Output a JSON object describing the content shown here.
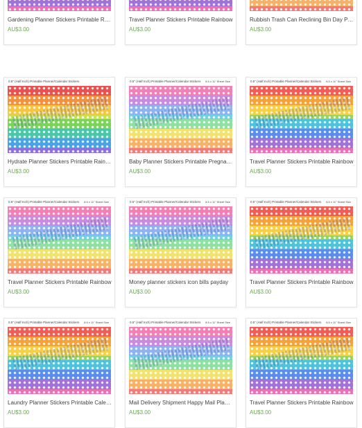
{
  "products": [
    {
      "title": "Gardening Planner Stickers Printable Rainbow",
      "price": "AU$3.00",
      "header": "",
      "size": ""
    },
    {
      "title": "Travel Planner Stickers Printable Rainbow",
      "price": "AU$3.00",
      "header": "",
      "size": ""
    },
    {
      "title": "Rubbish Trash Can Reclining Bin Day Planner",
      "price": "AU$3.00",
      "header": "",
      "size": ""
    },
    {
      "title": "Hydrate Planner Stickers Printable Rainbow",
      "price": "AU$3.00",
      "header": "0.5\" (Half Inch) Printable Planner/Calendar Stickers",
      "size": ""
    },
    {
      "title": "Baby Planner Stickers Printable Pregnancy",
      "price": "AU$3.00",
      "header": "0.5\" (Half Inch) Printable Planner/Calendar Stickers",
      "size": "8.5 x 11\" Sheet Size"
    },
    {
      "title": "Travel Planner Stickers Printable Rainbow",
      "price": "AU$3.00",
      "header": "0.5\" (Half Inch) Printable Planner/Calendar Stickers",
      "size": "8.5 x 11\" Sheet Size"
    },
    {
      "title": "Travel Planner Stickers Printable Rainbow",
      "price": "AU$3.00",
      "header": "0.5\" (Half Inch) Printable Planner/Calendar Stickers",
      "size": "8.5 x 11\" Sheet Size"
    },
    {
      "title": "Money planner stickers icon bills payday",
      "price": "AU$3.00",
      "header": "0.5\" (Half Inch) Printable Planner/Calendar Stickers",
      "size": "8.5 x 11\" Sheet Size"
    },
    {
      "title": "Travel Planner Stickers Printable Rainbow",
      "price": "AU$3.00",
      "header": "0.5\" (Half Inch) Printable Planner/Calendar Stickers",
      "size": "8.5 x 11\" Sheet Size"
    },
    {
      "title": "Laundry Planner Stickers Printable Calendar",
      "price": "AU$3.00",
      "header": "0.5\" (Half Inch) Printable Planner/Calendar Stickers",
      "size": "8.5 x 11\" Sheet Size"
    },
    {
      "title": "Mail Delivery Shipment Happy Mail Planner",
      "price": "AU$3.00",
      "header": "0.5\" (Half Inch) Printable Planner/Calendar Stickers",
      "size": "8.5 x 11\" Sheet Size"
    },
    {
      "title": "Travel Planner Stickers Printable Rainbow",
      "price": "AU$3.00",
      "header": "0.5\" (Half Inch) Printable Planner/Calendar Stickers",
      "size": "8.5 x 11\" Sheet Size"
    }
  ],
  "palettes": {
    "rainbow": [
      "#f25c54",
      "#f6a23b",
      "#f7d046",
      "#9bd35b",
      "#4fc3d9",
      "#5b8def",
      "#a173d9",
      "#ef6fb3"
    ],
    "pastel": [
      "#f47fb3",
      "#c88be0",
      "#8fb3f0",
      "#6fd1e6",
      "#8fe0a3",
      "#f0e36f",
      "#f7b267",
      "#f47a7a"
    ],
    "hydrate": [
      "#e8514f",
      "#f3913f",
      "#f8c53e",
      "#c9e24c",
      "#7dd35a",
      "#49c7a8",
      "#4aa3e6",
      "#8c6fe0"
    ]
  },
  "price_color": "#6aa84f"
}
